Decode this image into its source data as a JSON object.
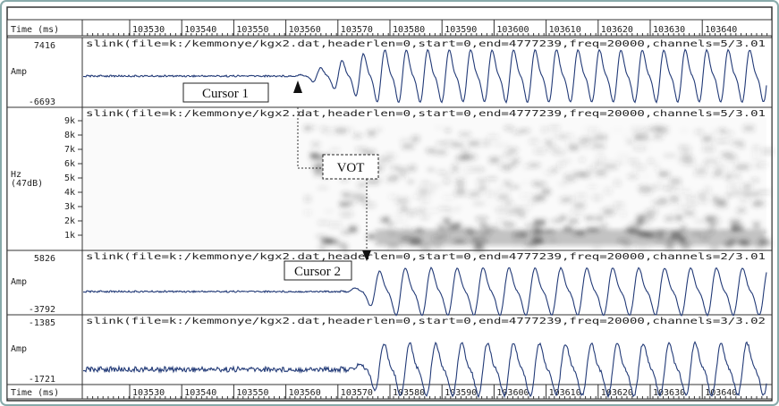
{
  "time_axis": {
    "label": "Time (ms)",
    "ticks": [
      103530,
      103540,
      103550,
      103560,
      103570,
      103580,
      103590,
      103600,
      103610,
      103620,
      103630,
      103640
    ]
  },
  "panels": [
    {
      "header": "slink(file=k:/kemmonye/kgx2.dat,headerlen=0,start=0,end=4777239,freq=20000,channels=5/3.01",
      "max": "7416",
      "min": "-6693",
      "unit": "Amp"
    },
    {
      "header": "slink(file=k:/kemmonye/kgx2.dat,headerlen=0,start=0,end=4777239,freq=20000,channels=5/3.01",
      "unit": "Hz",
      "unit_note": "(47dB)",
      "ticks": [
        "9k",
        "8k",
        "7k",
        "6k",
        "5k",
        "4k",
        "3k",
        "2k",
        "1k"
      ]
    },
    {
      "header": "slink(file=k:/kemmonye/kgx2.dat,headerlen=0,start=0,end=4777239,freq=20000,channels=2/3.01",
      "max": "5826",
      "min": "-3792",
      "unit": "Amp"
    },
    {
      "header": "slink(file=k:/kemmonye/kgx2.dat,headerlen=0,start=0,end=4777239,freq=20000,channels=3/3.02",
      "max": "-1385",
      "min": "-1721",
      "unit": "Amp"
    }
  ],
  "annotations": {
    "cursor1": "Cursor 1",
    "vot": "VOT",
    "cursor2": "Cursor 2"
  }
}
